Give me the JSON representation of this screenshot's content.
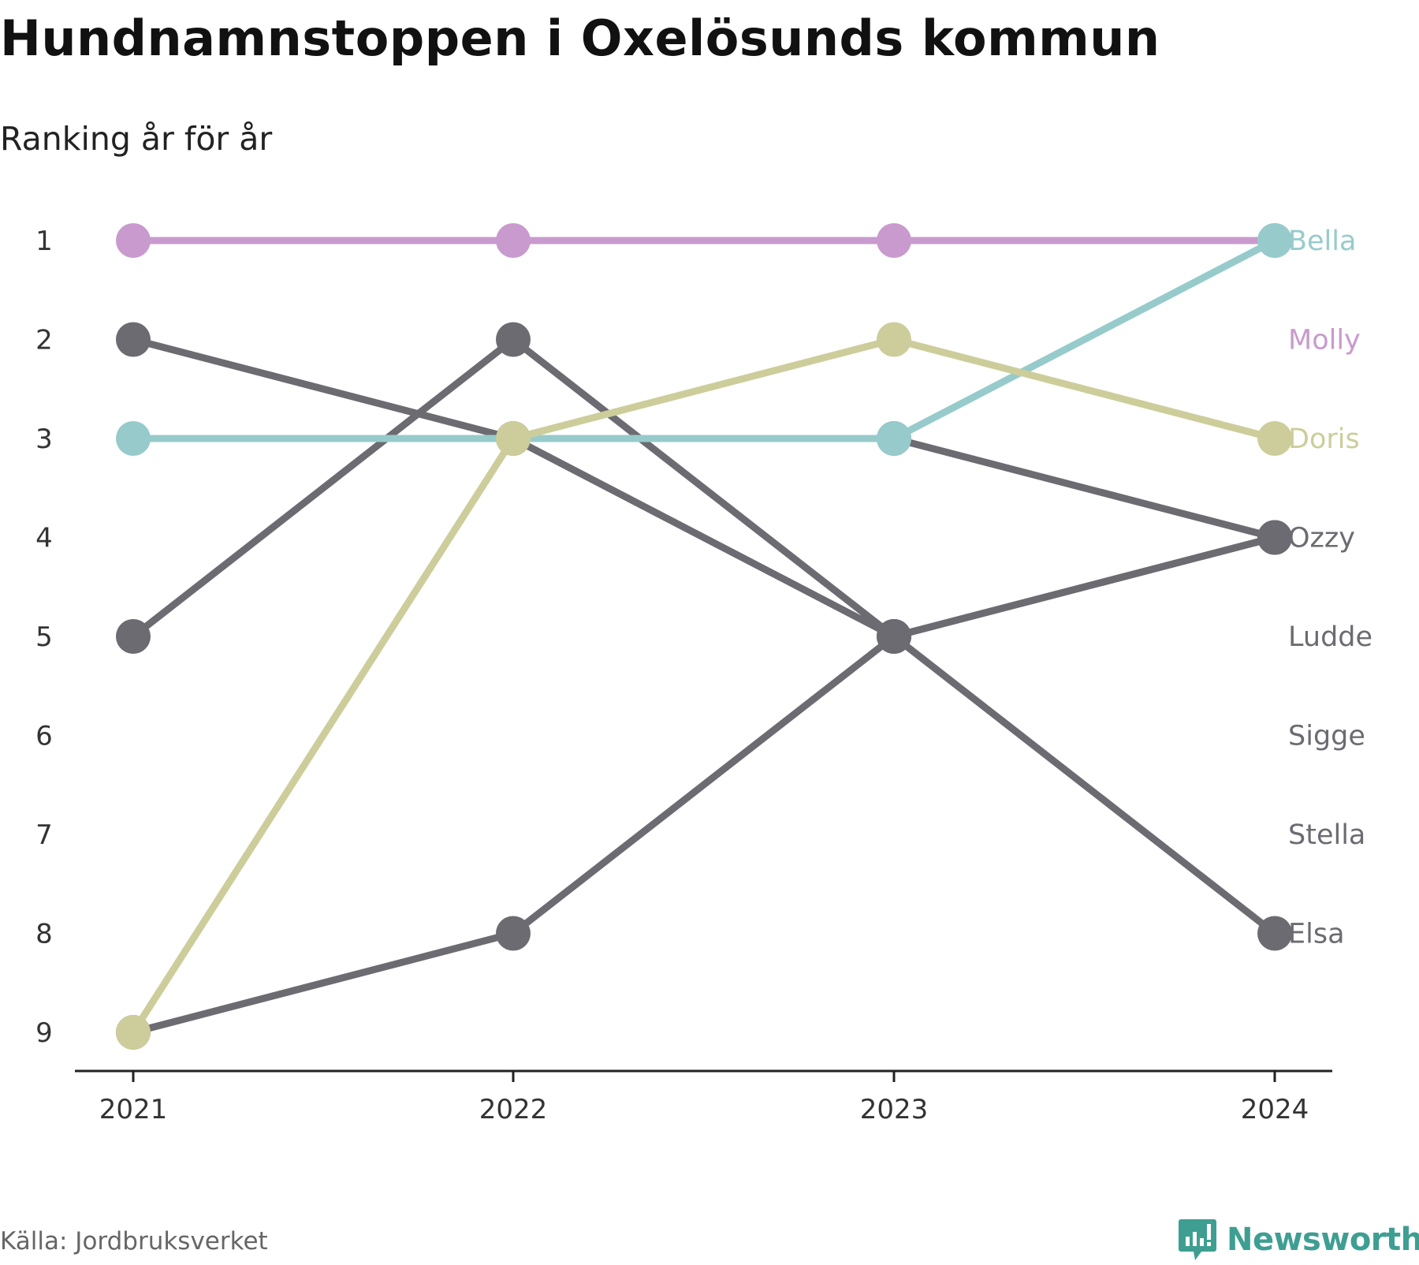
{
  "title": "Hundnamnstoppen i Oxelösunds kommun",
  "subtitle": "Ranking år för år",
  "source": "Källa: Jordbruksverket",
  "brand": {
    "name": "Newsworthy",
    "icon": "newsworthy-logo-icon",
    "color": "#3f9e92"
  },
  "chart_data": {
    "type": "line",
    "x": [
      "2021",
      "2022",
      "2023",
      "2024"
    ],
    "y_ticks": [
      1,
      2,
      3,
      4,
      5,
      6,
      7,
      8,
      9
    ],
    "ylim": [
      1,
      9
    ],
    "y_reversed": true,
    "grid": false,
    "legend": "end-labels-right",
    "series": [
      {
        "name": "Molly",
        "values": [
          1,
          1,
          1,
          1
        ],
        "color": "#c99acd"
      },
      {
        "name": "Bella",
        "values": [
          3,
          3,
          3,
          1
        ],
        "color": "#97cbcb"
      },
      {
        "name": "Doris",
        "values": [
          9,
          3,
          2,
          3
        ],
        "color": "#cdcd9b"
      },
      {
        "name": "Ozzy",
        "values": [
          2,
          3,
          5,
          4
        ],
        "color": "#6c6b72"
      },
      {
        "name": "Ludde",
        "values": [
          5,
          2,
          5,
          8
        ],
        "color": "#6c6b72"
      },
      {
        "name": "Sigge",
        "values": [
          9,
          8,
          5,
          4
        ],
        "color": "#6c6b72"
      },
      {
        "name": "Stella",
        "values": [
          null,
          null,
          3,
          4
        ],
        "color": "#6c6b72"
      },
      {
        "name": "Elsa",
        "values": [
          null,
          null,
          null,
          null
        ],
        "color": "#6c6b72"
      }
    ],
    "end_labels": [
      {
        "name": "Bella",
        "rank": 1,
        "color": "#97cbcb"
      },
      {
        "name": "Molly",
        "rank": 2,
        "color": "#c99acd"
      },
      {
        "name": "Doris",
        "rank": 3,
        "color": "#cdcd9b"
      },
      {
        "name": "Ozzy",
        "rank": 4,
        "color": "#6c6b72"
      },
      {
        "name": "Ludde",
        "rank": 5,
        "color": "#6c6b72"
      },
      {
        "name": "Sigge",
        "rank": 6,
        "color": "#6c6b72"
      },
      {
        "name": "Stella",
        "rank": 7,
        "color": "#6c6b72"
      },
      {
        "name": "Elsa",
        "rank": 8,
        "color": "#6c6b72"
      }
    ]
  }
}
